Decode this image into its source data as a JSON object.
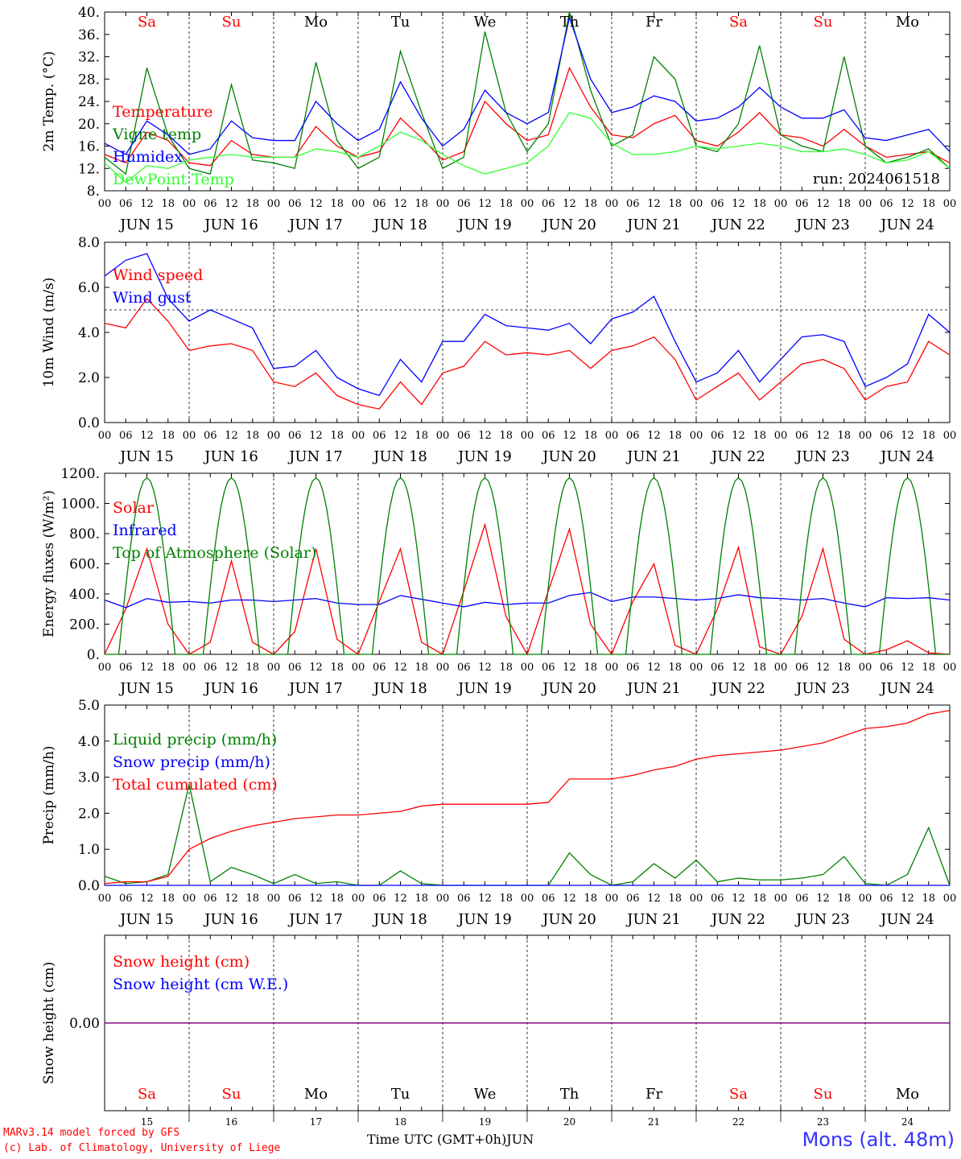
{
  "chart_data": [
    {
      "type": "line",
      "panel": "temperature",
      "ylabel": "2m Temp. (°C)",
      "ylim": [
        8,
        40
      ],
      "yticks": [
        "8.",
        "12.",
        "16.",
        "20.",
        "24.",
        "28.",
        "32.",
        "36.",
        "40."
      ],
      "run_label": "run: 2024061518",
      "top_day_labels": [
        {
          "label": "Sa",
          "color": "#ff0000"
        },
        {
          "label": "Su",
          "color": "#ff0000"
        },
        {
          "label": "Mo",
          "color": "#000000"
        },
        {
          "label": "Tu",
          "color": "#000000"
        },
        {
          "label": "We",
          "color": "#000000"
        },
        {
          "label": "Th",
          "color": "#000000"
        },
        {
          "label": "Fr",
          "color": "#000000"
        },
        {
          "label": "Sa",
          "color": "#ff0000"
        },
        {
          "label": "Su",
          "color": "#ff0000"
        },
        {
          "label": "Mo",
          "color": "#000000"
        }
      ],
      "x_hours": [
        0,
        6,
        12,
        18,
        24,
        30,
        36,
        42,
        48,
        54,
        60,
        66,
        72,
        78,
        84,
        90,
        96,
        102,
        108,
        114,
        120,
        126,
        132,
        138,
        144,
        150,
        156,
        162,
        168,
        174,
        180,
        186,
        192,
        198,
        204,
        210,
        216,
        222,
        228,
        234,
        240
      ],
      "series": [
        {
          "name": "Temperature",
          "color": "#ff0000",
          "values": [
            14.5,
            13,
            18.5,
            17,
            13,
            12.5,
            17,
            14.5,
            14,
            14,
            19.5,
            16,
            14,
            15,
            21,
            17.5,
            13.5,
            15,
            24,
            20,
            17,
            18,
            30,
            23,
            18,
            17.5,
            20,
            21.5,
            17,
            16,
            18.5,
            22,
            18,
            17.5,
            16,
            19,
            16,
            14,
            14.5,
            15,
            13
          ]
        },
        {
          "name": "Vigne temp",
          "color": "#008000",
          "values": [
            14,
            11,
            30,
            18,
            12,
            11,
            27,
            13.5,
            13,
            12,
            31,
            17,
            12,
            14,
            33,
            22,
            12,
            14,
            36.5,
            22,
            15,
            20,
            40,
            26,
            16,
            18,
            32,
            28,
            16,
            15,
            20,
            34,
            18,
            16,
            15,
            32,
            16,
            13,
            14,
            15.5,
            12
          ]
        },
        {
          "name": "Humidex",
          "color": "#0000ff",
          "values": [
            16.5,
            14.5,
            20.5,
            18,
            14.5,
            15.5,
            20.5,
            17.5,
            17,
            17,
            24,
            20,
            17,
            19,
            27.5,
            21,
            16,
            19,
            26,
            22,
            20,
            22,
            39,
            28,
            22,
            23,
            25,
            24,
            20.5,
            21,
            23,
            26.5,
            23,
            21,
            21,
            22.5,
            17.5,
            17,
            18,
            19,
            15
          ]
        },
        {
          "name": "DewPoint Temp",
          "color": "#33ff33",
          "values": [
            13,
            9.5,
            12.5,
            12,
            13.5,
            14,
            14.5,
            14,
            14,
            14,
            15.5,
            15,
            14,
            16,
            18.5,
            17,
            14.5,
            12.5,
            11,
            12,
            13,
            16,
            22,
            21,
            16.5,
            14.5,
            14.5,
            15,
            16,
            15.5,
            16,
            16.5,
            16,
            15,
            15,
            15.5,
            14.5,
            13,
            13.5,
            15,
            12
          ]
        }
      ]
    },
    {
      "type": "line",
      "panel": "wind",
      "ylabel": "10m Wind (m/s)",
      "ylim": [
        0,
        8
      ],
      "yticks": [
        "0.0",
        "2.0",
        "4.0",
        "6.0",
        "8.0"
      ],
      "reference_line": 5,
      "x_hours": [
        0,
        6,
        12,
        18,
        24,
        30,
        36,
        42,
        48,
        54,
        60,
        66,
        72,
        78,
        84,
        90,
        96,
        102,
        108,
        114,
        120,
        126,
        132,
        138,
        144,
        150,
        156,
        162,
        168,
        174,
        180,
        186,
        192,
        198,
        204,
        210,
        216,
        222,
        228,
        234,
        240
      ],
      "series": [
        {
          "name": "Wind speed",
          "color": "#ff0000",
          "values": [
            4.4,
            4.2,
            5.5,
            4.5,
            3.2,
            3.4,
            3.5,
            3.2,
            1.8,
            1.6,
            2.2,
            1.2,
            0.8,
            0.6,
            1.8,
            0.8,
            2.2,
            2.5,
            3.6,
            3.0,
            3.1,
            3.0,
            3.2,
            2.4,
            3.2,
            3.4,
            3.8,
            2.8,
            1.0,
            1.6,
            2.2,
            1.0,
            1.8,
            2.6,
            2.8,
            2.4,
            1.0,
            1.6,
            1.8,
            3.6,
            3.0
          ]
        },
        {
          "name": "Wind gust",
          "color": "#0000ff",
          "values": [
            6.5,
            7.2,
            7.5,
            5.5,
            4.5,
            5.0,
            4.6,
            4.2,
            2.4,
            2.5,
            3.2,
            2.0,
            1.5,
            1.2,
            2.8,
            1.8,
            3.6,
            3.6,
            4.8,
            4.3,
            4.2,
            4.1,
            4.4,
            3.5,
            4.6,
            4.9,
            5.6,
            3.6,
            1.8,
            2.2,
            3.2,
            1.8,
            2.8,
            3.8,
            3.9,
            3.6,
            1.6,
            2.0,
            2.6,
            4.8,
            4.0
          ]
        }
      ]
    },
    {
      "type": "line",
      "panel": "energy",
      "ylabel": "Energy fluxes (W/m²)",
      "ylim": [
        0,
        1200
      ],
      "yticks": [
        "0.",
        "200.",
        "400.",
        "600.",
        "800.",
        "1000.",
        "1200."
      ],
      "x_hours": [
        0,
        6,
        12,
        18,
        24,
        30,
        36,
        42,
        48,
        54,
        60,
        66,
        72,
        78,
        84,
        90,
        96,
        102,
        108,
        114,
        120,
        126,
        132,
        138,
        144,
        150,
        156,
        162,
        168,
        174,
        180,
        186,
        192,
        198,
        204,
        210,
        216,
        222,
        228,
        234,
        240
      ],
      "series": [
        {
          "name": "Solar",
          "color": "#ff0000",
          "values": [
            0,
            300,
            700,
            200,
            0,
            80,
            620,
            80,
            0,
            150,
            700,
            100,
            0,
            350,
            700,
            80,
            0,
            420,
            860,
            250,
            0,
            420,
            830,
            200,
            0,
            350,
            600,
            60,
            0,
            300,
            710,
            50,
            0,
            250,
            700,
            100,
            0,
            30,
            90,
            10,
            0
          ]
        },
        {
          "name": "Infrared",
          "color": "#0000ff",
          "values": [
            360,
            310,
            370,
            345,
            350,
            340,
            360,
            360,
            350,
            360,
            370,
            340,
            330,
            330,
            390,
            365,
            340,
            315,
            345,
            330,
            340,
            340,
            390,
            410,
            350,
            380,
            380,
            370,
            360,
            370,
            395,
            375,
            370,
            360,
            370,
            340,
            315,
            375,
            370,
            375,
            360
          ]
        },
        {
          "name": "Top of Atmosphere (Solar)",
          "color": "#008000"
        }
      ]
    },
    {
      "type": "line",
      "panel": "precip",
      "ylabel": "Precip (mm/h)",
      "ylim": [
        0,
        5
      ],
      "yticks": [
        "0.0",
        "1.0",
        "2.0",
        "3.0",
        "4.0",
        "5.0"
      ],
      "x_hours": [
        0,
        6,
        12,
        18,
        24,
        30,
        36,
        42,
        48,
        54,
        60,
        66,
        72,
        78,
        84,
        90,
        96,
        102,
        108,
        114,
        120,
        126,
        132,
        138,
        144,
        150,
        156,
        162,
        168,
        174,
        180,
        186,
        192,
        198,
        204,
        210,
        216,
        222,
        228,
        234,
        240
      ],
      "series": [
        {
          "name": "Liquid precip (mm/h)",
          "color": "#008000",
          "values": [
            0.25,
            0.05,
            0.1,
            0.3,
            2.8,
            0.1,
            0.5,
            0.3,
            0.05,
            0.3,
            0.05,
            0.1,
            0.0,
            0.0,
            0.4,
            0.05,
            0.0,
            0.0,
            0.0,
            0.0,
            0.0,
            0.0,
            0.9,
            0.3,
            0.0,
            0.1,
            0.6,
            0.2,
            0.7,
            0.1,
            0.2,
            0.15,
            0.15,
            0.2,
            0.3,
            0.8,
            0.05,
            0.0,
            0.3,
            1.6,
            0.0
          ]
        },
        {
          "name": "Snow precip (mm/h)",
          "color": "#0000ff",
          "values": [
            0,
            0,
            0,
            0,
            0,
            0,
            0,
            0,
            0,
            0,
            0,
            0,
            0,
            0,
            0,
            0,
            0,
            0,
            0,
            0,
            0,
            0,
            0,
            0,
            0,
            0,
            0,
            0,
            0,
            0,
            0,
            0,
            0,
            0,
            0,
            0,
            0,
            0,
            0,
            0,
            0
          ]
        },
        {
          "name": "Total cumulated (cm)",
          "color": "#ff0000",
          "values": [
            0.05,
            0.1,
            0.1,
            0.25,
            1.0,
            1.3,
            1.5,
            1.65,
            1.75,
            1.85,
            1.9,
            1.95,
            1.95,
            2.0,
            2.05,
            2.2,
            2.25,
            2.25,
            2.25,
            2.25,
            2.25,
            2.3,
            2.95,
            2.95,
            2.95,
            3.05,
            3.2,
            3.3,
            3.5,
            3.6,
            3.65,
            3.7,
            3.75,
            3.85,
            3.95,
            4.15,
            4.35,
            4.4,
            4.5,
            4.75,
            4.85
          ]
        }
      ]
    },
    {
      "type": "line",
      "panel": "snow",
      "ylabel": "Snow height (cm)",
      "yticks": [
        "0.00"
      ],
      "x_hours": [
        0,
        240
      ],
      "bottom_day_labels": [
        {
          "label": "Sa",
          "color": "#ff0000"
        },
        {
          "label": "Su",
          "color": "#ff0000"
        },
        {
          "label": "Mo",
          "color": "#000000"
        },
        {
          "label": "Tu",
          "color": "#000000"
        },
        {
          "label": "We",
          "color": "#000000"
        },
        {
          "label": "Th",
          "color": "#000000"
        },
        {
          "label": "Fr",
          "color": "#000000"
        },
        {
          "label": "Sa",
          "color": "#ff0000"
        },
        {
          "label": "Su",
          "color": "#ff0000"
        },
        {
          "label": "Mo",
          "color": "#000000"
        }
      ],
      "bottom_day_numbers": [
        "15",
        "16",
        "17",
        "18",
        "19",
        "20",
        "21",
        "22",
        "23",
        "24"
      ],
      "series": [
        {
          "name": "Snow height (cm)",
          "color": "#ff0000",
          "values": [
            0,
            0
          ]
        },
        {
          "name": "Snow height (cm W.E.)",
          "color": "#0000ff",
          "values": [
            0,
            0
          ]
        }
      ]
    }
  ],
  "x_axis": {
    "hour_ticks": [
      "00",
      "06",
      "12",
      "18"
    ],
    "final_tick": "00",
    "date_labels": [
      "JUN 15",
      "JUN 16",
      "JUN 17",
      "JUN 18",
      "JUN 19",
      "JUN 20",
      "JUN 21",
      "JUN 22",
      "JUN 23",
      "JUN 24"
    ],
    "title": "Time UTC (GMT+0h)",
    "month": "JUN"
  },
  "footer": {
    "credit_line1": "MARv3.14 model forced by GFS",
    "credit_line2": "(c) Lab. of Climatology, University of Liege",
    "station": "Mons (alt. 48m)"
  }
}
